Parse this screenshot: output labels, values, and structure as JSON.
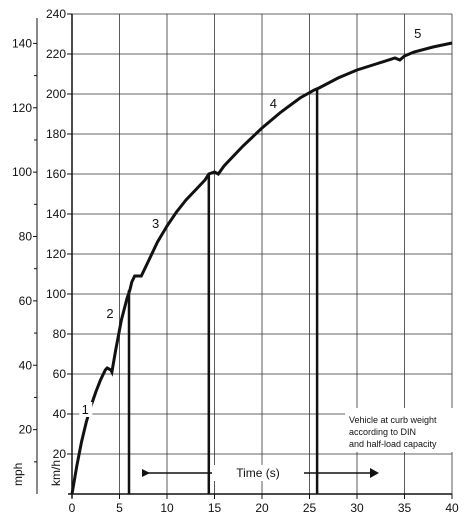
{
  "chart_data": {
    "type": "line",
    "xlabel": "Time (s)",
    "kmh_unit": "km/h",
    "mph_unit": "mph",
    "xlim": [
      0,
      40
    ],
    "ylim": [
      0,
      240
    ],
    "x_ticks": [
      "0",
      "5",
      "10",
      "15",
      "20",
      "25",
      "30",
      "35",
      "40"
    ],
    "kmh_ticks": [
      "20",
      "40",
      "60",
      "80",
      "100",
      "120",
      "140",
      "160",
      "180",
      "200",
      "220",
      "240"
    ],
    "mph_ticks": [
      "20",
      "40",
      "60",
      "80",
      "100",
      "120",
      "140"
    ],
    "grid": true,
    "series": [
      {
        "x": [
          0,
          0.5,
          1,
          1.5,
          2,
          2.5,
          3,
          3.5,
          3.7,
          4.1,
          4.2,
          4.6,
          5.2,
          5.8,
          6.1,
          6.3,
          6.6,
          7.3,
          8,
          9,
          10,
          11,
          12,
          13,
          14,
          14.4,
          15,
          15.4,
          16,
          18,
          20,
          22,
          24,
          25.5,
          26,
          28,
          30,
          32,
          34,
          34.5,
          35,
          36,
          38,
          40
        ],
        "y": [
          0,
          14,
          26,
          36,
          44,
          51,
          57,
          62,
          63,
          62,
          61,
          72,
          87,
          98,
          102,
          106,
          109,
          109,
          116,
          126,
          134,
          141,
          147,
          152,
          157,
          160,
          161,
          160,
          164,
          174,
          183,
          191,
          198,
          202,
          203,
          208,
          212,
          215,
          218,
          217,
          219,
          221,
          223.5,
          225.5
        ]
      }
    ],
    "shift_lines": [
      {
        "x": 6,
        "y_top": 102
      },
      {
        "x": 14.4,
        "y_top": 160
      },
      {
        "x": 25.8,
        "y_top": 202
      }
    ],
    "gear_labels": [
      {
        "text": "1",
        "x": 1.4,
        "y": 40
      },
      {
        "text": "2",
        "x": 4.0,
        "y": 88
      },
      {
        "text": "3",
        "x": 8.8,
        "y": 133
      },
      {
        "text": "4",
        "x": 21.2,
        "y": 193
      },
      {
        "text": "5",
        "x": 36.4,
        "y": 228
      }
    ],
    "annotation": [
      "Vehicle at curb weight",
      "according to DIN",
      "and half-load capacity"
    ]
  }
}
